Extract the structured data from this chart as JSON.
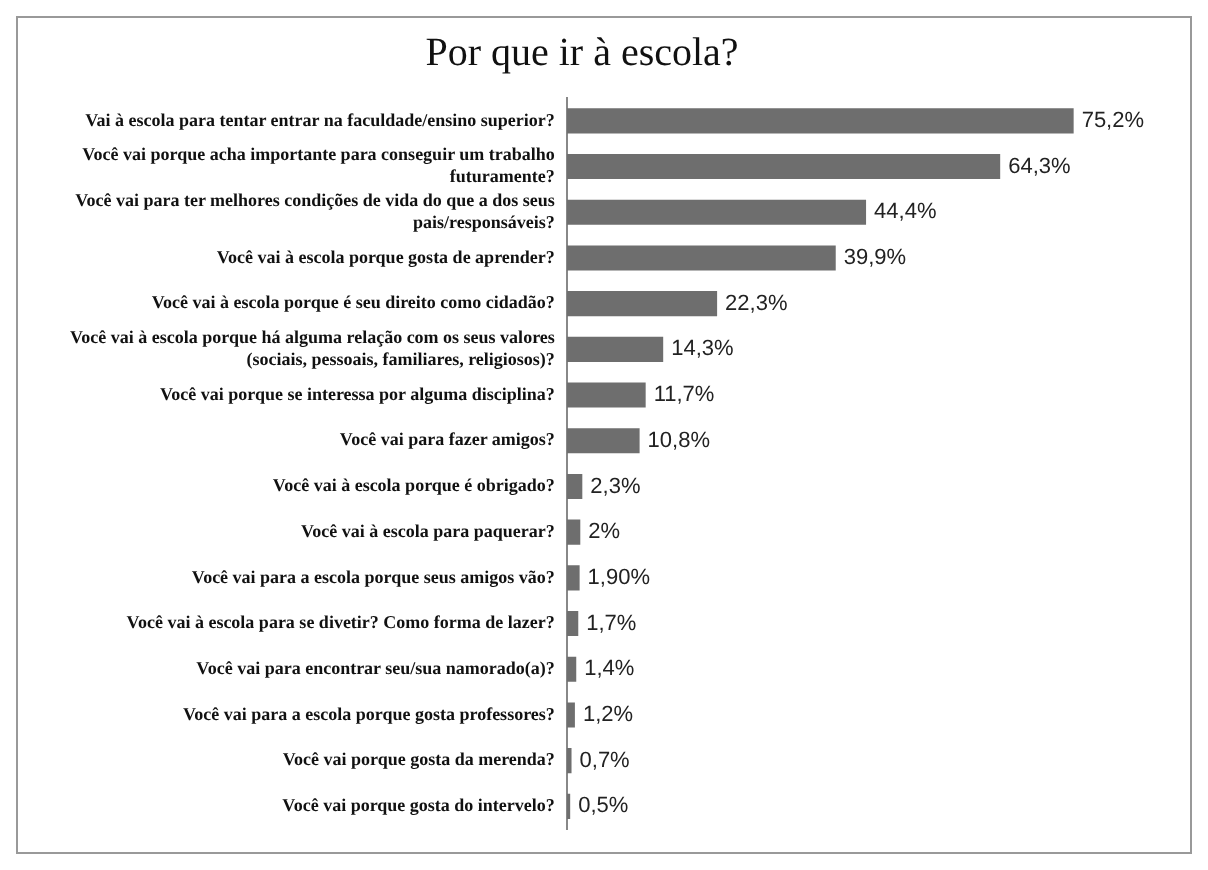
{
  "chart_data": {
    "type": "bar",
    "orientation": "horizontal",
    "title": "Por que ir à escola?",
    "categories": [
      "Vai à escola para tentar entrar na faculdade/ensino superior?",
      "Você vai porque acha importante para conseguir um trabalho futuramente?",
      "Você vai para ter melhores condições de vida do que a dos seus pais/responsáveis?",
      "Você vai à escola porque gosta de aprender?",
      "Você vai à escola porque é seu direito como cidadão?",
      "Você vai à escola porque há alguma relação com os seus valores (sociais, pessoais, familiares, religiosos)?",
      "Você vai porque se interessa por alguma disciplina?",
      "Você vai para fazer amigos?",
      "Você vai à escola porque é obrigado?",
      "Você vai à escola para paquerar?",
      "Você vai para a escola porque seus amigos vão?",
      "Você vai à escola para se divetir? Como forma de lazer?",
      "Você vai para encontrar seu/sua namorado(a)?",
      "Você vai para a escola porque gosta professores?",
      "Você vai porque gosta da merenda?",
      "Você vai porque gosta do intervelo?"
    ],
    "values": [
      75.2,
      64.3,
      44.4,
      39.9,
      22.3,
      14.3,
      11.7,
      10.8,
      2.3,
      2,
      1.9,
      1.7,
      1.4,
      1.2,
      0.7,
      0.5
    ],
    "value_labels": [
      "75,2%",
      "64,3%",
      "44,4%",
      "39,9%",
      "22,3%",
      "14,3%",
      "11,7%",
      "10,8%",
      "2,3%",
      "2%",
      "1,90%",
      "1,7%",
      "1,4%",
      "1,2%",
      "0,7%",
      "0,5%"
    ],
    "color": "#6e6e6e",
    "grid": false,
    "legend": false,
    "tick_labels": "y"
  }
}
